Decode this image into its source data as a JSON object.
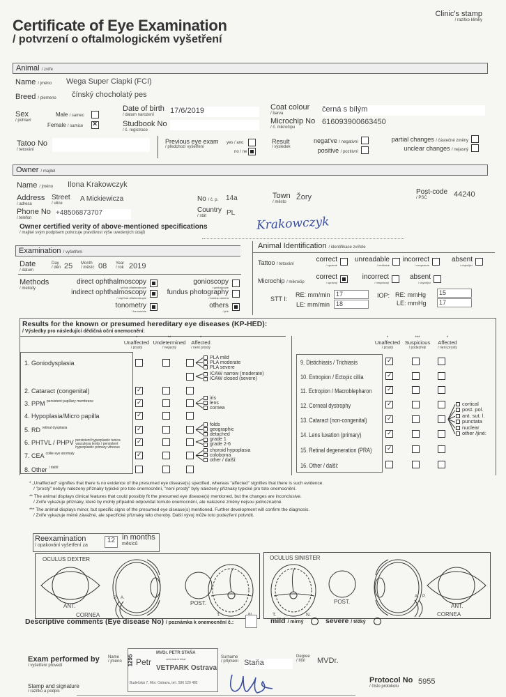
{
  "header": {
    "title": "Certificate of Eye Examination",
    "subtitle": "/ potvrzení o oftalmologickém vyšetření",
    "clinic_stamp": "Clinic's stamp",
    "clinic_stamp_cz": "/ razítko kliniky"
  },
  "animal": {
    "section": "Animal",
    "section_cz": "/ zvíře",
    "name_label": "Name",
    "name_cz": "/ jméno",
    "name": "Wega Super Ciapki (FCI)",
    "breed_label": "Breed",
    "breed_cz": "/ plemeno",
    "breed": "čínský chocholatý pes",
    "sex_label": "Sex",
    "sex_cz": "/ pohlaví",
    "male_label": "Male",
    "male_cz": "/ samec",
    "male": "empty",
    "female_label": "Female",
    "female_cz": "/ samice",
    "female": "crossed",
    "dob_label": "Date of birth",
    "dob_cz": "/ datum narození",
    "dob": "17/6/2019",
    "studbook_label": "Studbook No",
    "studbook_cz": "/ č. registrace",
    "studbook": "",
    "coat_label": "Coat colour",
    "coat_cz": "/ barva",
    "coat": "černá s bílým",
    "microchip_label": "Microchip No",
    "microchip_cz": "/ č. mikročipu",
    "microchip": "616093900663450",
    "tattoo_label": "Tatoo No",
    "tattoo_cz": "/ tetování",
    "tattoo": "",
    "prev_label": "Previous eye exam",
    "prev_cz": "/ předchozí vyšetření",
    "yes_label": "yes",
    "yes_cz": "/ ano",
    "yes": "empty",
    "no_label": "no",
    "no_cz": "/ ne",
    "no": "filled",
    "result_label": "Result",
    "result_cz": "/ výsledek",
    "negative_label": "negat've",
    "negative_cz": "/ negativní",
    "negative": "empty",
    "positive_label": "positive",
    "positive_cz": "/ pozitivní",
    "positive": "empty",
    "partial_label": "partial changes",
    "partial_cz": "/ částečné změny",
    "partial": "empty",
    "unclear_label": "unclear changes",
    "unclear_cz": "/ nejasný",
    "unclear": "empty"
  },
  "owner": {
    "section": "Owner",
    "section_cz": "/ majitel",
    "name_label": "Name",
    "name_cz": "/ jméno",
    "name": "Ilona Krakowczyk",
    "address_label": "Address",
    "address_cz": "/ adresa",
    "street_label": "Street",
    "street_cz": "/ ulice",
    "street": "A Mickiewicza",
    "no_label": "No",
    "no_cz": "/ č. p.",
    "no": "14a",
    "town_label": "Town",
    "town_cz": "/ město",
    "town": "Žory",
    "postcode_label": "Post-code",
    "postcode_cz": "/ PSČ",
    "postcode": "44240",
    "phone_label": "Phone No",
    "phone_cz": "/ telefon",
    "phone": "+48506873707",
    "country_label": "Country",
    "country_cz": "/ stát",
    "country": "PL",
    "certify": "Owner certified verity of above-mentioned specifications",
    "certify_cz": "/ majitel svým podpisem potvrzuje pravdivost výše uvedených údajů",
    "signature": "Krakowczyk"
  },
  "exam": {
    "section": "Examination",
    "section_cz": "/ vyšetření",
    "date_label": "Date",
    "date_cz": "/ datum",
    "day_label": "Day",
    "day_cz": "/ den",
    "day": "25",
    "month_label": "Month",
    "month_cz": "/ měsíc",
    "month": "08",
    "year_label": "Year",
    "year_cz": "/ rok",
    "year": "2019",
    "methods_label": "Methods",
    "methods_cz": "/ metody",
    "methods": [
      {
        "label": "direct ophthalmoscopy",
        "cz": "/ přímá oftalmoskopie",
        "state": "filled"
      },
      {
        "label": "indirect ophthalmoscopy",
        "cz": "/ nepřímá oftalmoskopie",
        "state": "filled"
      },
      {
        "label": "tonometry",
        "cz": "/ tonometrie",
        "state": "filled"
      },
      {
        "label": "gonioscopy",
        "cz": "/ gonioskopie",
        "state": "empty"
      },
      {
        "label": "fundus photography",
        "cz": "/ fundus camera",
        "state": "empty"
      },
      {
        "label": "others",
        "cz": "/ jiné",
        "state": "filled"
      }
    ]
  },
  "identification": {
    "section": "Animal Identification",
    "section_cz": "/ identifikace zvířete",
    "tattoo_label": "Tattoo",
    "tattoo_cz": "/ tetování",
    "tattoo": [
      {
        "label": "correct",
        "cz": "/ správně",
        "state": "empty"
      },
      {
        "label": "unreadable",
        "cz": "/ nečitelné",
        "state": "empty"
      },
      {
        "label": "incorrect",
        "cz": "/ nesprávné",
        "state": "empty"
      },
      {
        "label": "absent",
        "cz": "/ chybějící",
        "state": "empty"
      }
    ],
    "microchip_label": "Microchip",
    "microchip_cz": "/ mikročip",
    "microchip": [
      {
        "label": "correct",
        "cz": "/ správný",
        "state": "filled"
      },
      {
        "label": "incorrect",
        "cz": "/ nesprávný",
        "state": "empty"
      },
      {
        "label": "absent",
        "cz": "/ chybějící",
        "state": "empty"
      }
    ],
    "stt_label": "STT I:",
    "stt_re_label": "RE: mm/min",
    "stt_re": "17",
    "stt_le_label": "LE: mm/min",
    "stt_le": "18",
    "iop_label": "IOP:",
    "iop_re_label": "RE: mmHg",
    "iop_re": "15",
    "iop_le_label": "LE: mmHg",
    "iop_le": "17"
  },
  "results": {
    "title": "Results for the known or presumed hereditary eye diseases (KP-HED):",
    "title_cz": "/ Výsledky pro následující dědičná oční onemocnění:",
    "left_headers": [
      {
        "mark": "*",
        "label": "Unaffected",
        "cz": "/ prostý"
      },
      {
        "mark": "**",
        "label": "Undetermined",
        "cz": "/ nejasný"
      },
      {
        "mark": "*",
        "label": "Affected",
        "cz": "/ není prostý"
      }
    ],
    "right_headers": [
      {
        "mark": "*",
        "label": "Unaffected",
        "cz": "/ prostý"
      },
      {
        "mark": "***",
        "label": "Suspicious",
        "cz": "/ podezřelý"
      },
      {
        "mark": "*",
        "label": "Affected",
        "cz": "/ není prostý"
      }
    ],
    "left": [
      {
        "label": "1. Goniodysplasia",
        "note": "",
        "states": [
          "empty",
          "empty",
          "empty"
        ],
        "options": [
          "PLA mild",
          "PLA moderate",
          "PLA severe"
        ],
        "extra_state": "empty",
        "extra_options": [
          "ICAW narrow (moderate)",
          "ICAW closed (severe)"
        ]
      },
      {
        "label": "2. Cataract (congenital)",
        "note": "",
        "states": [
          "checked",
          "empty",
          "empty"
        ],
        "options": []
      },
      {
        "label": "3. PPM",
        "note": "persistent pupillary membrane",
        "states": [
          "checked",
          "empty",
          "empty"
        ],
        "options": [
          "iris",
          "lens",
          "cornea"
        ]
      },
      {
        "label": "4. Hypoplasia/Micro papilla",
        "note": "",
        "states": [
          "checked",
          "empty",
          "empty"
        ],
        "options": []
      },
      {
        "label": "5. RD",
        "note": "retinal dysplasia",
        "states": [
          "checked",
          "empty",
          "empty"
        ],
        "options": [
          "folds",
          "geographic",
          "detached"
        ]
      },
      {
        "label": "6. PHTVL / PHPV",
        "note": "persistent hyperplastic tunica vasculosa lentis / persistent hyperplastic primary vitreous",
        "states": [
          "checked",
          "empty",
          "empty"
        ],
        "options": [
          "grade 1",
          "grade 2-6"
        ]
      },
      {
        "label": "7. CEA",
        "note": "collie eye anomaly",
        "states": [
          "checked",
          "empty",
          "empty"
        ],
        "options": [
          "choroid hypoplasia",
          "coloboma",
          "other / další:"
        ]
      },
      {
        "label": "8. Other",
        "note": "/ další:",
        "states": [
          "empty",
          "empty",
          "empty"
        ],
        "options": []
      }
    ],
    "right": [
      {
        "label": "9. Distichiasis / Trichiasis",
        "states": [
          "checked",
          "empty",
          "empty"
        ],
        "options": []
      },
      {
        "label": "10. Entropion / Ectopic cillia",
        "states": [
          "checked",
          "empty",
          "empty"
        ],
        "options": []
      },
      {
        "label": "11. Ectropion / Macroblepharon",
        "states": [
          "checked",
          "empty",
          "empty"
        ],
        "options": []
      },
      {
        "label": "12. Corneal dystrophy",
        "states": [
          "checked",
          "empty",
          "empty"
        ],
        "options": []
      },
      {
        "label": "13. Cataract (non-congenital)",
        "states": [
          "checked",
          "empty",
          "empty"
        ],
        "options": [
          "cortical",
          "post. pol.",
          "ant. sut. l.",
          "punctata",
          "nuclear",
          "other /jiné:"
        ]
      },
      {
        "label": "14. Lens luxation (primary)",
        "states": [
          "checked",
          "empty",
          "empty"
        ],
        "options": []
      },
      {
        "label": "15. Retinal degeneration (PRA)",
        "states": [
          "checked",
          "empty",
          "empty"
        ],
        "options": []
      },
      {
        "label": "16. Other / další:",
        "states": [
          "empty",
          "empty",
          "empty"
        ],
        "options": []
      }
    ]
  },
  "footnotes": [
    "* „Unaffected\" signifies that there is no evidence of the presumed eye disease(s) specified, whereas \"affected\" signifies that there is such evidence.",
    "/ \"prostý\" nebyly nalezeny příznaky typické pro toto onemocnění, \"není prostý\" byly nalezeny příznaky typické pro toto onemocnění.",
    "** The animal displays clinical features that could possibly fit the presumed eye disease(s) mentioned, but the changes are inconclusive.",
    "/ Zvíře vykazuje příznaky, které by mohly případně odpovídat tomuto onemocnění, ale nalezené změny nejsou jednoznačné.",
    "*** The animal displays minor, but specific signs of the presumed eye disease(s) mentioned. Further development will confirm the diagnosis.",
    "/ Zvíře vykazuje méně závažné, ale specifické příznaky této choroby. Další vývoj může toto podezření potvrdit."
  ],
  "reexam": {
    "label": "Reexamination",
    "cz": "/ opakování vyšetření za",
    "months": "12",
    "unit": "in months",
    "unit_cz": "měsíců"
  },
  "diagrams": {
    "od": "OCULUS DEXTER",
    "os": "OCULUS SINISTER",
    "ant": "ANT.",
    "post": "POST.",
    "cornea": "CORNEA",
    "t": "T.",
    "n": "N.",
    "p": "P.",
    "a": "A."
  },
  "comments": {
    "label": "Descriptive comments (Eye disease No)",
    "cz": "/ poznámka k onemocnění č.:",
    "value": "",
    "mild": "mild",
    "mild_cz": "/ mírný",
    "severe": "severe",
    "severe_cz": "/ těžký"
  },
  "examiner": {
    "label": "Exam performed by",
    "cz": "/ vyšetření provedl",
    "name_label": "Name",
    "name_cz": "/ jméno",
    "name": "Petr",
    "surname_label": "Surname",
    "surname_cz": "/ příjmení",
    "surname": "Staňa",
    "degree_label": "Degree",
    "degree_cz": "/ titul",
    "degree": "MVDr.",
    "stamp_label": "Stamp and signature",
    "stamp_cz": "/ razítko a podpis",
    "protocol_label": "Protocol No",
    "protocol_cz": "/ číslo protokolu",
    "protocol": "5955",
    "stamp": {
      "number": "1295",
      "line1": "MVDr. PETR STAŇA",
      "line2": "veterinární lékař",
      "line3": "VETPARK Ostrava",
      "line4": "Budečská 7, Mor. Ostrava, tel.: 596 120 482"
    }
  }
}
